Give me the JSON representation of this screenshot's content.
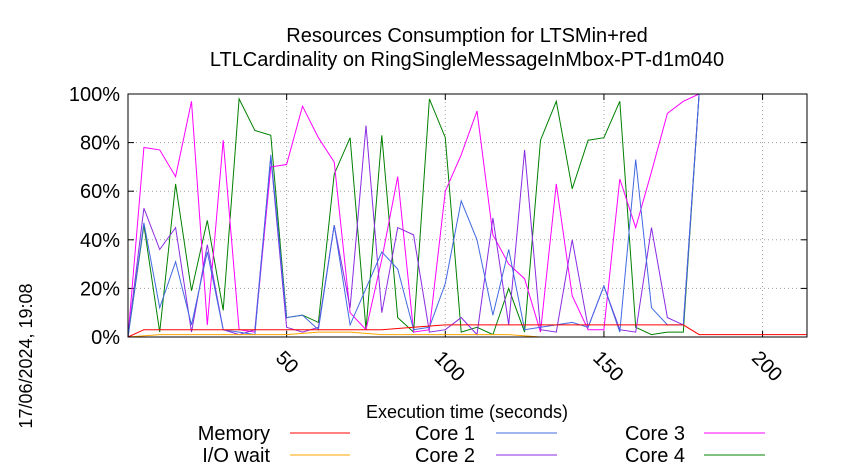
{
  "chart_data": {
    "type": "line",
    "title": [
      "Resources Consumption for LTSMin+red",
      "LTLCardinality on RingSingleMessageInMbox-PT-d1m040"
    ],
    "xlabel": "Execution time (seconds)",
    "ylabel": "",
    "side_label": "17/06/2024, 19:08",
    "xlim": [
      0,
      214
    ],
    "ylim": [
      0,
      100
    ],
    "xticks": [
      50,
      100,
      150,
      200
    ],
    "yticks": [
      0,
      20,
      40,
      60,
      80,
      100
    ],
    "ytick_labels": [
      "0%",
      "20%",
      "40%",
      "60%",
      "80%",
      "100%"
    ],
    "grid": true,
    "legend_position": "bottom",
    "series": [
      {
        "name": "Memory",
        "color": "#ff0000",
        "x": [
          0,
          5,
          10,
          20,
          30,
          40,
          50,
          60,
          70,
          80,
          90,
          100,
          110,
          120,
          130,
          140,
          150,
          160,
          170,
          175,
          180,
          190,
          200,
          214
        ],
        "y": [
          0,
          3,
          3,
          3,
          3,
          3,
          3,
          3,
          3,
          3,
          4,
          5,
          5,
          5,
          5,
          5,
          5,
          5,
          5,
          5,
          1,
          1,
          1,
          1
        ]
      },
      {
        "name": "I/O wait",
        "color": "#ffa500",
        "x": [
          0,
          10,
          20,
          30,
          40,
          50,
          60,
          70,
          80,
          90,
          100,
          110,
          120,
          130,
          140,
          150,
          160,
          170,
          175,
          180,
          214
        ],
        "y": [
          0,
          1,
          1,
          1,
          1,
          1,
          2,
          2,
          1,
          1,
          1,
          1,
          1,
          0,
          0,
          0,
          0,
          0,
          0,
          0,
          0
        ]
      },
      {
        "name": "Core 1",
        "color": "#4169e1",
        "x": [
          0,
          5,
          10,
          15,
          20,
          25,
          30,
          35,
          40,
          45,
          50,
          55,
          60,
          65,
          70,
          75,
          80,
          85,
          90,
          95,
          100,
          105,
          110,
          115,
          120,
          125,
          130,
          135,
          140,
          145,
          150,
          155,
          160,
          165,
          170,
          175,
          180,
          214
        ],
        "y": [
          0,
          47,
          12,
          31,
          5,
          35,
          3,
          2,
          1,
          75,
          8,
          9,
          3,
          46,
          5,
          20,
          35,
          28,
          3,
          4,
          22,
          56,
          40,
          9,
          36,
          3,
          4,
          5,
          6,
          4,
          21,
          2,
          73,
          12,
          5,
          5,
          100,
          100
        ]
      },
      {
        "name": "Core 2",
        "color": "#8a2be2",
        "x": [
          0,
          5,
          10,
          15,
          20,
          25,
          30,
          35,
          40,
          45,
          50,
          55,
          60,
          65,
          70,
          75,
          80,
          85,
          90,
          95,
          100,
          105,
          110,
          115,
          120,
          125,
          130,
          135,
          140,
          145,
          150,
          155,
          160,
          165,
          170,
          175,
          180,
          214
        ],
        "y": [
          0,
          53,
          36,
          45,
          2,
          38,
          3,
          1,
          3,
          74,
          4,
          2,
          4,
          46,
          12,
          87,
          10,
          45,
          42,
          2,
          3,
          8,
          1,
          49,
          5,
          77,
          3,
          2,
          40,
          4,
          21,
          3,
          2,
          45,
          8,
          5,
          100,
          100
        ]
      },
      {
        "name": "Core 3",
        "color": "#ff00ff",
        "x": [
          0,
          5,
          10,
          15,
          20,
          25,
          30,
          35,
          40,
          45,
          50,
          55,
          60,
          65,
          70,
          75,
          80,
          85,
          90,
          95,
          100,
          105,
          110,
          115,
          120,
          125,
          130,
          135,
          140,
          145,
          150,
          155,
          160,
          165,
          170,
          175,
          180,
          214
        ],
        "y": [
          0,
          78,
          77,
          66,
          97,
          5,
          81,
          3,
          2,
          70,
          71,
          95,
          82,
          72,
          10,
          3,
          32,
          66,
          2,
          3,
          60,
          75,
          93,
          42,
          30,
          24,
          2,
          63,
          17,
          3,
          3,
          65,
          45,
          68,
          92,
          97,
          100,
          100
        ]
      },
      {
        "name": "Core 4",
        "color": "#008000",
        "x": [
          0,
          5,
          10,
          15,
          20,
          25,
          30,
          35,
          40,
          45,
          50,
          55,
          60,
          65,
          70,
          75,
          80,
          85,
          90,
          95,
          100,
          105,
          110,
          115,
          120,
          125,
          130,
          135,
          140,
          145,
          150,
          155,
          160,
          165,
          170,
          175,
          180,
          214
        ],
        "y": [
          0,
          46,
          2,
          63,
          19,
          48,
          11,
          98,
          85,
          83,
          8,
          9,
          6,
          67,
          82,
          3,
          83,
          8,
          2,
          98,
          82,
          2,
          4,
          1,
          20,
          2,
          81,
          97,
          61,
          81,
          82,
          97,
          4,
          1,
          2,
          2,
          100,
          100
        ]
      }
    ]
  }
}
